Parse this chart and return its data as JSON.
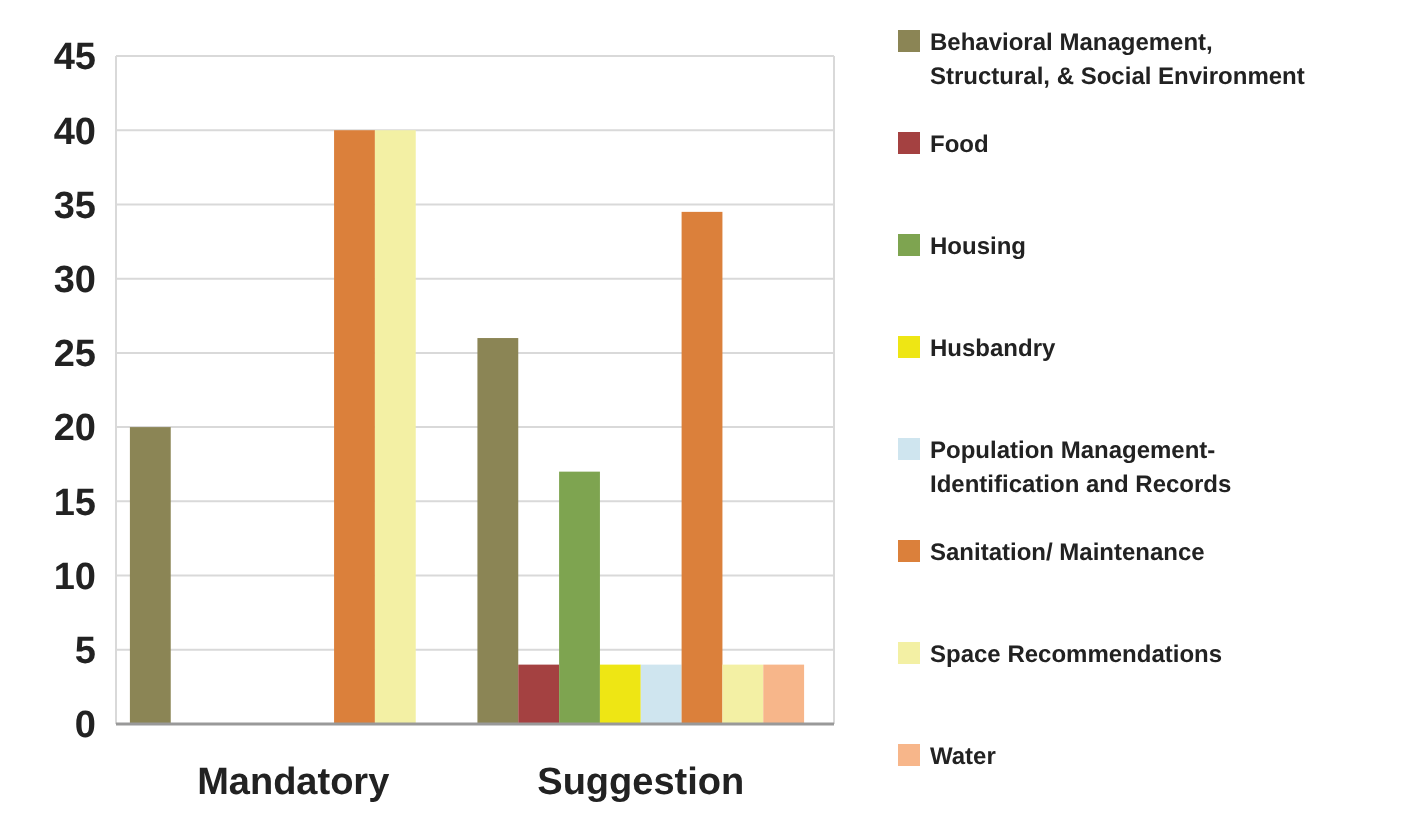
{
  "chart_data": {
    "type": "bar",
    "categories": [
      "Mandatory",
      "Suggestion"
    ],
    "series": [
      {
        "name": "Behavioral Management, Structural, & Social Environment",
        "color": "#8b8555",
        "values": [
          20,
          26
        ]
      },
      {
        "name": "Food",
        "color": "#a44141",
        "values": [
          0,
          4
        ]
      },
      {
        "name": "Housing",
        "color": "#7ea450",
        "values": [
          0,
          17
        ]
      },
      {
        "name": "Husbandry",
        "color": "#eee614",
        "values": [
          0,
          4
        ]
      },
      {
        "name": "Population Management-Identification and Records",
        "color": "#cfe5ef",
        "values": [
          0,
          4
        ]
      },
      {
        "name": "Sanitation/ Maintenance",
        "color": "#db803b",
        "values": [
          40,
          34.5
        ]
      },
      {
        "name": "Space Recommendations",
        "color": "#f3f0a4",
        "values": [
          40,
          4
        ]
      },
      {
        "name": "Water",
        "color": "#f7b68a",
        "values": [
          0,
          4
        ]
      }
    ],
    "ylim": [
      0,
      45
    ],
    "yticks": [
      0,
      5,
      10,
      15,
      20,
      25,
      30,
      35,
      40,
      45
    ],
    "grid": "y",
    "legend": "right"
  }
}
